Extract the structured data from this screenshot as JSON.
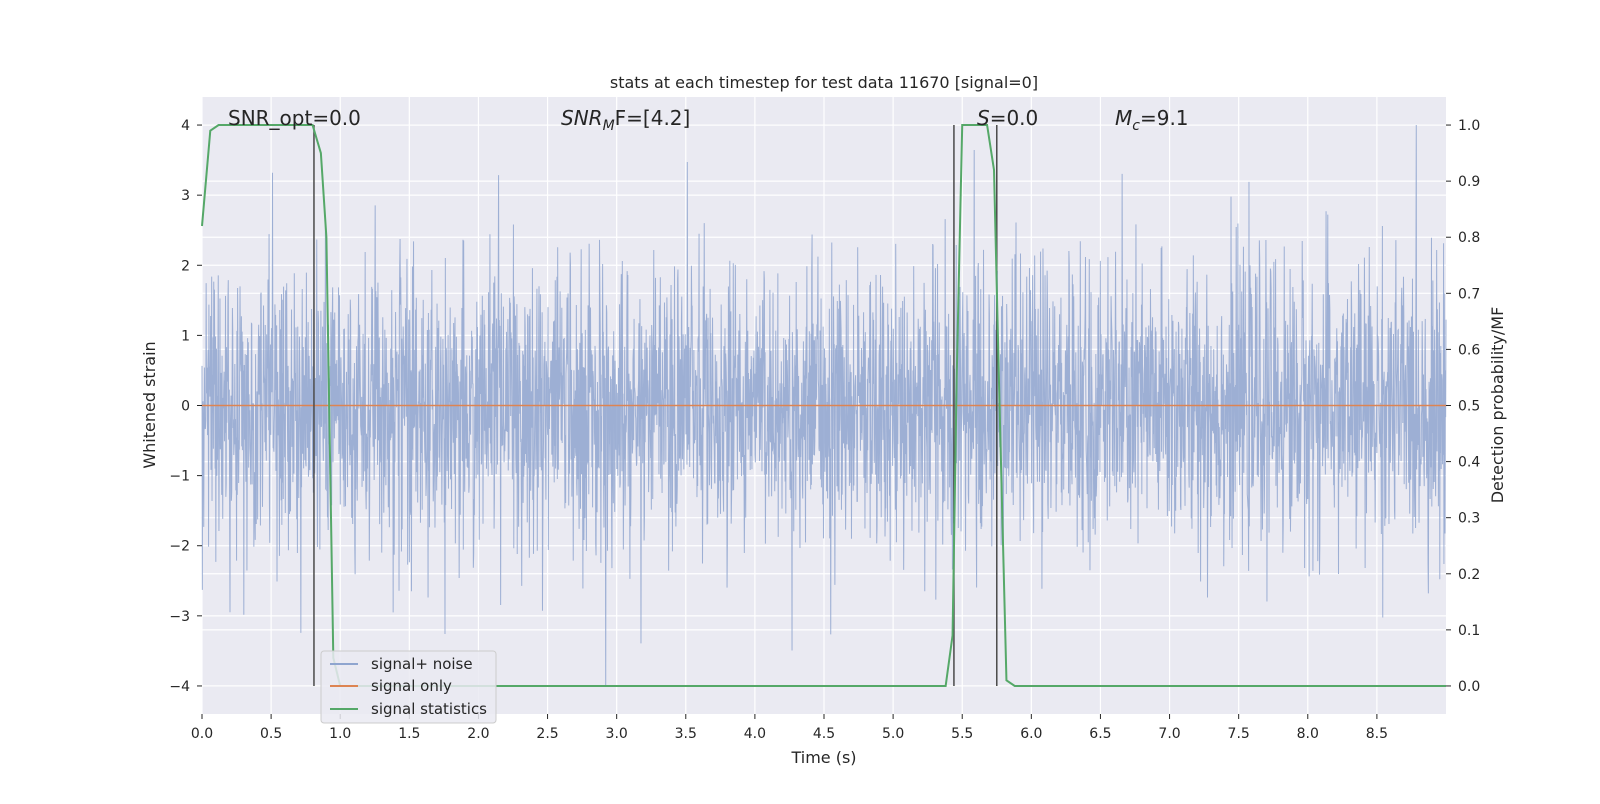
{
  "chart_data": {
    "type": "line",
    "title": "stats at each timestep for test data 11670 [signal=0]",
    "xlabel": "Time (s)",
    "ylabel": "Whitened strain",
    "ylabel_right": "Detection probability/MF",
    "xlim": [
      0.0,
      9.0
    ],
    "ylim": [
      -4.4,
      4.4
    ],
    "ylim_right": [
      -0.05,
      1.05
    ],
    "x_ticks": [
      "0.0",
      "0.5",
      "1.0",
      "1.5",
      "2.0",
      "2.5",
      "3.0",
      "3.5",
      "4.0",
      "4.5",
      "5.0",
      "5.5",
      "6.0",
      "6.5",
      "7.0",
      "7.5",
      "8.0",
      "8.5"
    ],
    "y_ticks": [
      "4",
      "3",
      "2",
      "1",
      "0",
      "−1",
      "−2",
      "−3",
      "−4"
    ],
    "y_right_ticks": [
      "1.0",
      "0.9",
      "0.8",
      "0.7",
      "0.6",
      "0.5",
      "0.4",
      "0.3",
      "0.2",
      "0.1",
      "0.0"
    ],
    "grid": true,
    "legend_position": "lower-left",
    "annotations": {
      "snr_opt": "SNR_opt=0.0",
      "snr_mf_main": "SNR",
      "snr_mf_sub": "M",
      "snr_mf_rest": "F=[4.2]",
      "s_main": "S",
      "s_rest": "=0.0",
      "mc_main": "M",
      "mc_sub": "c",
      "mc_rest": "=9.1"
    },
    "vlines_x": [
      0.81,
      5.44,
      5.75
    ],
    "series": [
      {
        "name": "signal+ noise",
        "color": "#8fa5cf",
        "description_values": "gaussian noise, std ~1, peaks up to about 4 and down to about -4",
        "noise_std": 1.0,
        "noise_seed": 11670
      },
      {
        "name": "signal only",
        "color": "#dd8452",
        "x": [
          0.0,
          9.0
        ],
        "y": [
          0.0,
          0.0
        ]
      },
      {
        "name": "signal statistics",
        "color": "#55a868",
        "axis": "right",
        "x": [
          0.0,
          0.06,
          0.12,
          0.8,
          0.86,
          0.9,
          0.95,
          1.0,
          5.38,
          5.43,
          5.46,
          5.5,
          5.68,
          5.73,
          5.77,
          5.82,
          5.88,
          9.0
        ],
        "y": [
          0.82,
          0.99,
          1.0,
          1.0,
          0.95,
          0.8,
          0.05,
          0.0,
          0.0,
          0.09,
          0.55,
          1.0,
          1.0,
          0.92,
          0.5,
          0.01,
          0.0,
          0.0
        ]
      }
    ]
  }
}
